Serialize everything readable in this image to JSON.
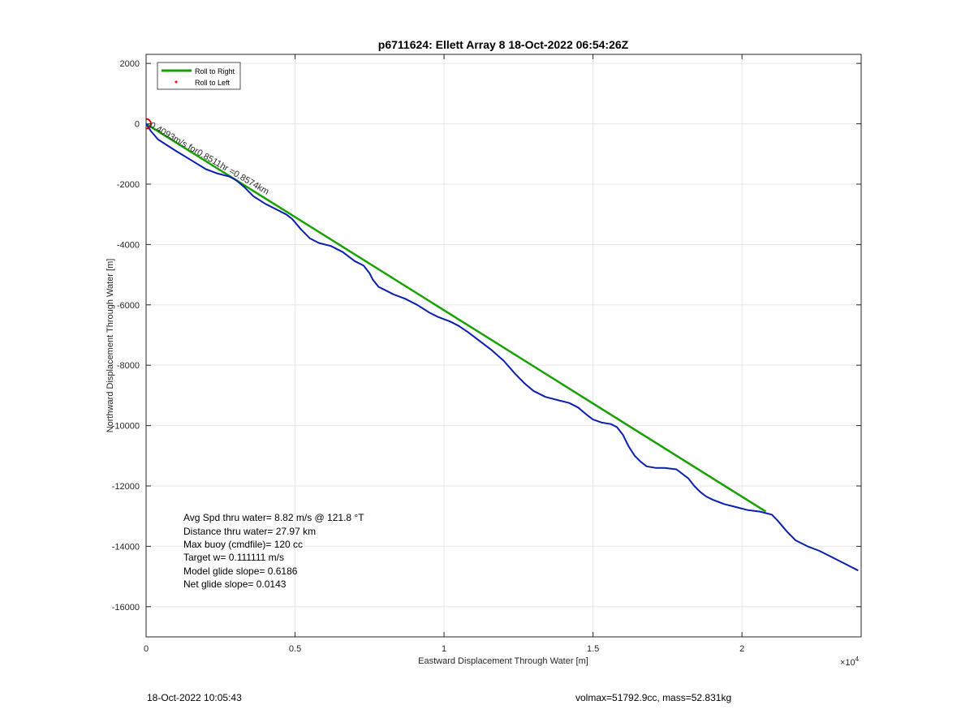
{
  "chart_data": {
    "type": "line",
    "title": "p6711624: Ellett Array 8 18-Oct-2022 06:54:26Z",
    "xlabel": "Eastward Displacement Through Water [m]",
    "ylabel": "Northward Displacement Through Water [m]",
    "x_exponent_label": "×10",
    "x_exponent_power": "4",
    "xlim": [
      0,
      24000
    ],
    "ylim": [
      -17000,
      2300
    ],
    "x_ticks": [
      0,
      5000,
      10000,
      15000,
      20000
    ],
    "x_tick_labels": [
      "0",
      "0.5",
      "1",
      "1.5",
      "2"
    ],
    "y_ticks": [
      2000,
      0,
      -2000,
      -4000,
      -6000,
      -8000,
      -10000,
      -12000,
      -14000,
      -16000
    ],
    "y_tick_labels": [
      "2000",
      "0",
      "-2000",
      "-4000",
      "-6000",
      "-8000",
      "-10000",
      "-12000",
      "-14000",
      "-16000"
    ],
    "grid": true,
    "legend": {
      "placement": "top-left",
      "entries": [
        {
          "label": "Roll to Right",
          "color": "#17a000",
          "marker": "line"
        },
        {
          "label": "Roll to Left",
          "color": "#ff0000",
          "marker": "dot"
        }
      ]
    },
    "series": [
      {
        "name": "Roll to Right",
        "color": "#17a000",
        "x": [
          0,
          20800
        ],
        "y": [
          0,
          -12850
        ]
      },
      {
        "color": "#0a1fb0",
        "x": [
          0,
          150,
          400,
          1000,
          1500,
          2000,
          2400,
          2800,
          3000,
          3300,
          3600,
          4000,
          4400,
          4700,
          4900,
          5200,
          5500,
          5800,
          6200,
          6600,
          7000,
          7300,
          7500,
          7600,
          7800,
          8000,
          8300,
          8700,
          9100,
          9500,
          9800,
          10200,
          10500,
          10800,
          11200,
          11600,
          12000,
          12400,
          12700,
          13000,
          13400,
          13800,
          14200,
          14500,
          14800,
          15000,
          15300,
          15600,
          15800,
          16000,
          16200,
          16400,
          16600,
          16800,
          17100,
          17400,
          17800,
          18200,
          18400,
          18600,
          18800,
          19000,
          19400,
          19800,
          20200,
          20600,
          21000,
          21200,
          21500,
          21800,
          22200,
          22600,
          23000,
          23400,
          23900
        ],
        "y": [
          0,
          -230,
          -520,
          -900,
          -1200,
          -1500,
          -1650,
          -1750,
          -1850,
          -2100,
          -2400,
          -2650,
          -2850,
          -3000,
          -3150,
          -3500,
          -3800,
          -3950,
          -4050,
          -4250,
          -4550,
          -4700,
          -4950,
          -5150,
          -5400,
          -5500,
          -5650,
          -5800,
          -6000,
          -6250,
          -6400,
          -6550,
          -6700,
          -6900,
          -7200,
          -7500,
          -7850,
          -8300,
          -8600,
          -8850,
          -9050,
          -9150,
          -9250,
          -9400,
          -9650,
          -9800,
          -9900,
          -9950,
          -10050,
          -10300,
          -10700,
          -11000,
          -11200,
          -11350,
          -11400,
          -11400,
          -11450,
          -11750,
          -12000,
          -12200,
          -12350,
          -12450,
          -12600,
          -12700,
          -12800,
          -12850,
          -12950,
          -13150,
          -13500,
          -13800,
          -14000,
          -14150,
          -14350,
          -14550,
          -14800
        ]
      }
    ],
    "markers": [
      {
        "label": "start-circle",
        "x": 0,
        "y": 0,
        "color": "#cc0000"
      }
    ],
    "annotations": [
      {
        "text": "0.4093m/s for0.8511hr =0.8574km",
        "x": 100,
        "y": -100,
        "rotation": 30
      }
    ]
  },
  "stats": {
    "lines": [
      "Avg Spd thru water=  8.82 m/s @ 121.8 °T",
      "Distance thru water= 27.97 km",
      "Max buoy (cmdfile)= 120 cc",
      "Target w= 0.111111 m/s",
      "Model glide slope= 0.6186",
      "Net glide slope= 0.0143"
    ]
  },
  "footer": {
    "left": "18-Oct-2022 10:05:43",
    "right": "volmax=51792.9cc, mass=52.831kg"
  }
}
